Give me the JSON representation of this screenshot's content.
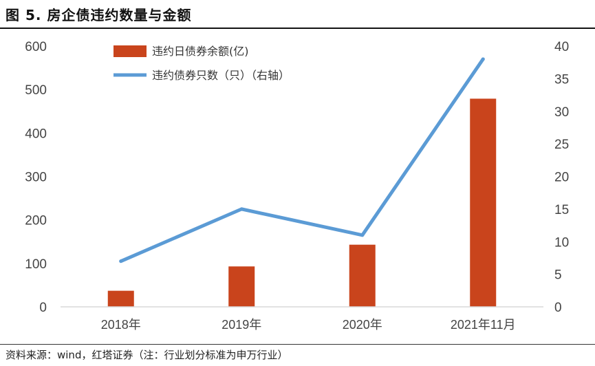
{
  "header": {
    "title": "图 5. 房企债违约数量与金额"
  },
  "footer": {
    "source": "资料来源：wind，红塔证券（注：行业划分标准为申万行业）"
  },
  "colors": {
    "bar": "#C9441C",
    "line": "#5B9BD5",
    "axis": "#D9D9D9",
    "text": "#444444"
  },
  "chart_data": {
    "type": "bar",
    "categories": [
      "2018年",
      "2019年",
      "2020年",
      "2021年11月"
    ],
    "series": [
      {
        "name": "违约日债券余额(亿)",
        "type": "bar",
        "axis": "left",
        "values": [
          37,
          93,
          143,
          479
        ]
      },
      {
        "name": "违约债券只数（只）（右轴）",
        "type": "line",
        "axis": "right",
        "values": [
          7,
          15,
          11,
          38
        ]
      }
    ],
    "ylim": [
      0,
      600
    ],
    "yticks": [
      0,
      100,
      200,
      300,
      400,
      500,
      600
    ],
    "y2lim": [
      0,
      40
    ],
    "y2ticks": [
      0,
      5,
      10,
      15,
      20,
      25,
      30,
      35,
      40
    ],
    "legend": "top-left",
    "grid": false
  }
}
